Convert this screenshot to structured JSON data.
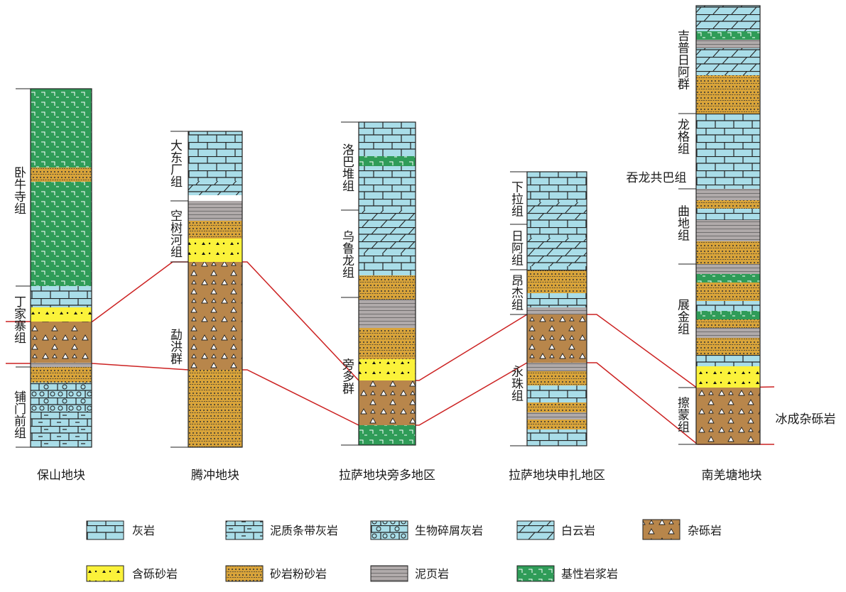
{
  "columns": [
    {
      "id": "baoshan",
      "name": "保山地块",
      "units": [
        {
          "label": "卧牛寺组",
          "rock": "basalt"
        },
        {
          "label": "丁家寨组",
          "rock": "diamictite"
        },
        {
          "label": "铺门前组",
          "rock": "limestone"
        }
      ]
    },
    {
      "id": "tengchong",
      "name": "腾冲地块",
      "units": [
        {
          "label": "大东厂组",
          "rock": "limestone"
        },
        {
          "label": "空树河组",
          "rock": "pebbly_sandstone"
        },
        {
          "label": "勐洪群",
          "rock": "diamictite"
        }
      ]
    },
    {
      "id": "lhasa_pangduo",
      "name": "拉萨地块旁多地区",
      "units": [
        {
          "label": "洛巴堆组",
          "rock": "limestone"
        },
        {
          "label": "乌鲁龙组",
          "rock": "limestone"
        },
        {
          "label": "旁多群",
          "rock": "diamictite"
        }
      ]
    },
    {
      "id": "lhasa_shenzha",
      "name": "拉萨地块申扎地区",
      "units": [
        {
          "label": "下拉组",
          "rock": "limestone"
        },
        {
          "label": "日阿组",
          "rock": "dolomite"
        },
        {
          "label": "昂杰组",
          "rock": "sandstone_siltstone"
        },
        {
          "label": "永珠组",
          "rock": "diamictite"
        }
      ]
    },
    {
      "id": "south_qiangtang",
      "name": "南羌塘地块",
      "units": [
        {
          "label": "吉普日阿群",
          "rock": "dolomite"
        },
        {
          "label": "龙格组",
          "rock": "limestone"
        },
        {
          "label": "吞龙共巴组",
          "rock": "limestone"
        },
        {
          "label": "曲地组",
          "rock": "shale"
        },
        {
          "label": "展金组",
          "rock": "basalt"
        },
        {
          "label": "擦蒙组",
          "rock": "diamictite"
        }
      ]
    }
  ],
  "annotation": "冰成杂砾岩",
  "legend": [
    {
      "key": "limestone",
      "label": "灰岩"
    },
    {
      "key": "argillaceous_banded_limestone",
      "label": "泥质条带灰岩"
    },
    {
      "key": "bioclastic_limestone",
      "label": "生物碎屑灰岩"
    },
    {
      "key": "dolomite",
      "label": "白云岩"
    },
    {
      "key": "diamictite",
      "label": "杂砾岩"
    },
    {
      "key": "pebbly_sandstone",
      "label": "含砾砂岩"
    },
    {
      "key": "sandstone_siltstone",
      "label": "砂岩粉砂岩"
    },
    {
      "key": "shale",
      "label": "泥页岩"
    },
    {
      "key": "basalt",
      "label": "基性岩浆岩"
    }
  ],
  "colors": {
    "limestone": "#a9dde8",
    "diamictite": "#b8864b",
    "sandstone": "#d9a43a",
    "pebbly_sandstone": "#fbf23a",
    "shale": "#b0aaaa",
    "basalt": "#2f9c58",
    "correlation_line": "#cc2222"
  }
}
